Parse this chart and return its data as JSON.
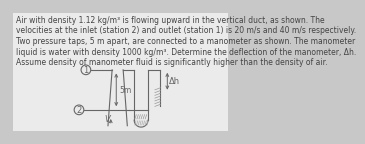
{
  "background_color": "#c8c8c8",
  "paper_color": "#ebebeb",
  "text_lines": [
    "Air with density 1.12 kg/m³ is flowing upward in the vertical duct, as shown. The",
    "velocities at the inlet (station 2) and outlet (station 1) is 20 m/s and 40 m/s respectively.",
    "Two pressure taps, 5 m apart, are connected to a manometer as shown. The manometer",
    "liquid is water with density 1000 kg/m³. Determine the deflection of the manometer, Δh.",
    "Assume density of manometer fluid is significantly higher than the density of air."
  ],
  "text_color": "#444444",
  "diagram_label_1": "1",
  "diagram_label_2": "2",
  "diagram_5m": "5m",
  "diagram_V": "V",
  "diagram_dh": "Δh"
}
